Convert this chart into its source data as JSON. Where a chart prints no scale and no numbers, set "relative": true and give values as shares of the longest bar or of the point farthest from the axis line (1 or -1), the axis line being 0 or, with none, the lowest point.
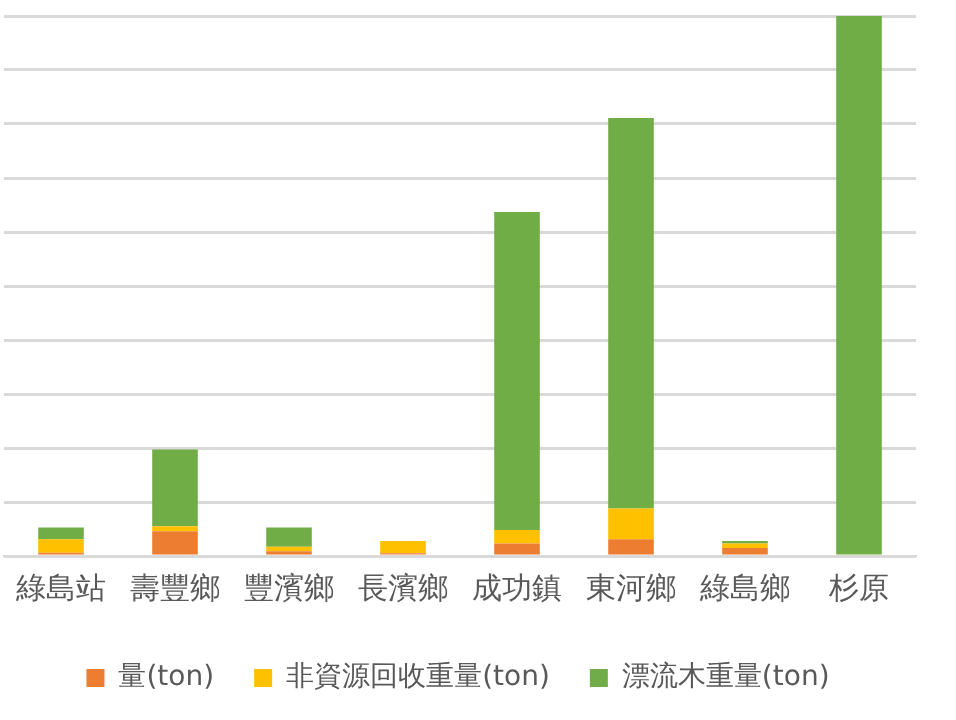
{
  "chart_data": {
    "type": "bar",
    "stacked": true,
    "relative": true,
    "grid": "y",
    "legend": "bottom",
    "categories": [
      "綠島站",
      "壽豐鄉",
      "豐濱鄉",
      "長濱鄉",
      "成功鎮",
      "東河鄉",
      "綠島鄉",
      "杉原"
    ],
    "series": [
      {
        "name": "量(ton)",
        "color": "#ed7d31",
        "values": [
          0.006,
          0.046,
          0.009,
          0.005,
          0.023,
          0.031,
          0.015,
          0
        ]
      },
      {
        "name": "非資源回收重量(ton)",
        "color": "#ffc000",
        "values": [
          0.025,
          0.009,
          0.008,
          0.023,
          0.025,
          0.057,
          0.008,
          0
        ]
      },
      {
        "name": "漂流木重量(ton)",
        "color": "#70ad47",
        "values": [
          0.022,
          0.142,
          0.036,
          0,
          0.589,
          0.723,
          0.005,
          1
        ]
      }
    ]
  }
}
